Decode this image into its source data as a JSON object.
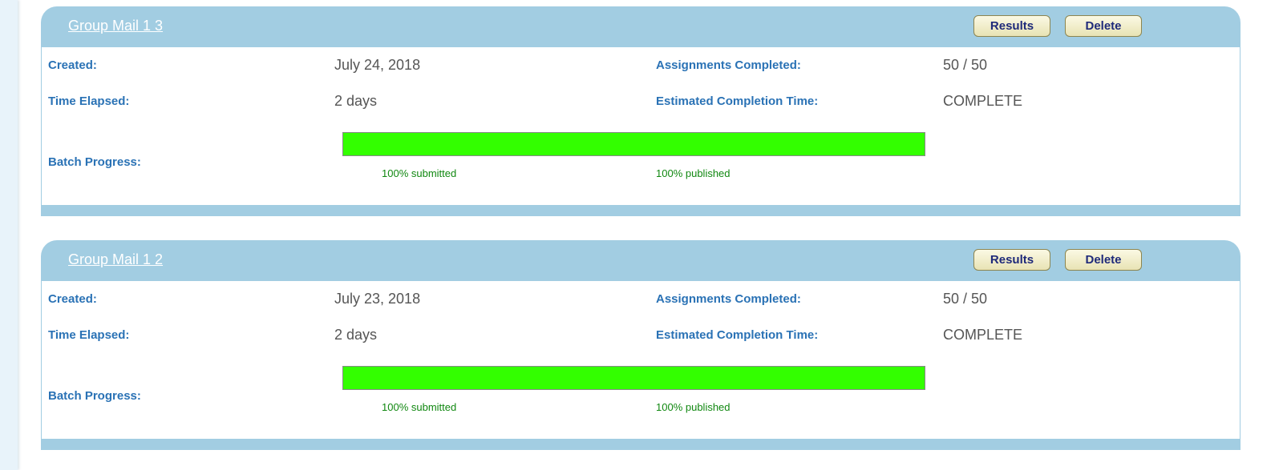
{
  "labels": {
    "created": "Created:",
    "elapsed": "Time Elapsed:",
    "progress": "Batch Progress:",
    "assignments": "Assignments Completed:",
    "eta": "Estimated Completion Time:",
    "results": "Results",
    "delete": "Delete"
  },
  "batches": [
    {
      "title": "Group Mail 1 3",
      "created": "July 24, 2018",
      "elapsed": "2 days",
      "assignments": "50 / 50",
      "eta": "COMPLETE",
      "progress_percent": 100,
      "submitted": "100% submitted",
      "published": "100% published"
    },
    {
      "title": "Group Mail 1 2",
      "created": "July 23, 2018",
      "elapsed": "2 days",
      "assignments": "50 / 50",
      "eta": "COMPLETE",
      "progress_percent": 100,
      "submitted": "100% submitted",
      "published": "100% published"
    }
  ],
  "colors": {
    "header": "#a2cde2",
    "label": "#2a72b5",
    "progress": "#33ff00",
    "progress_text": "#118811"
  }
}
